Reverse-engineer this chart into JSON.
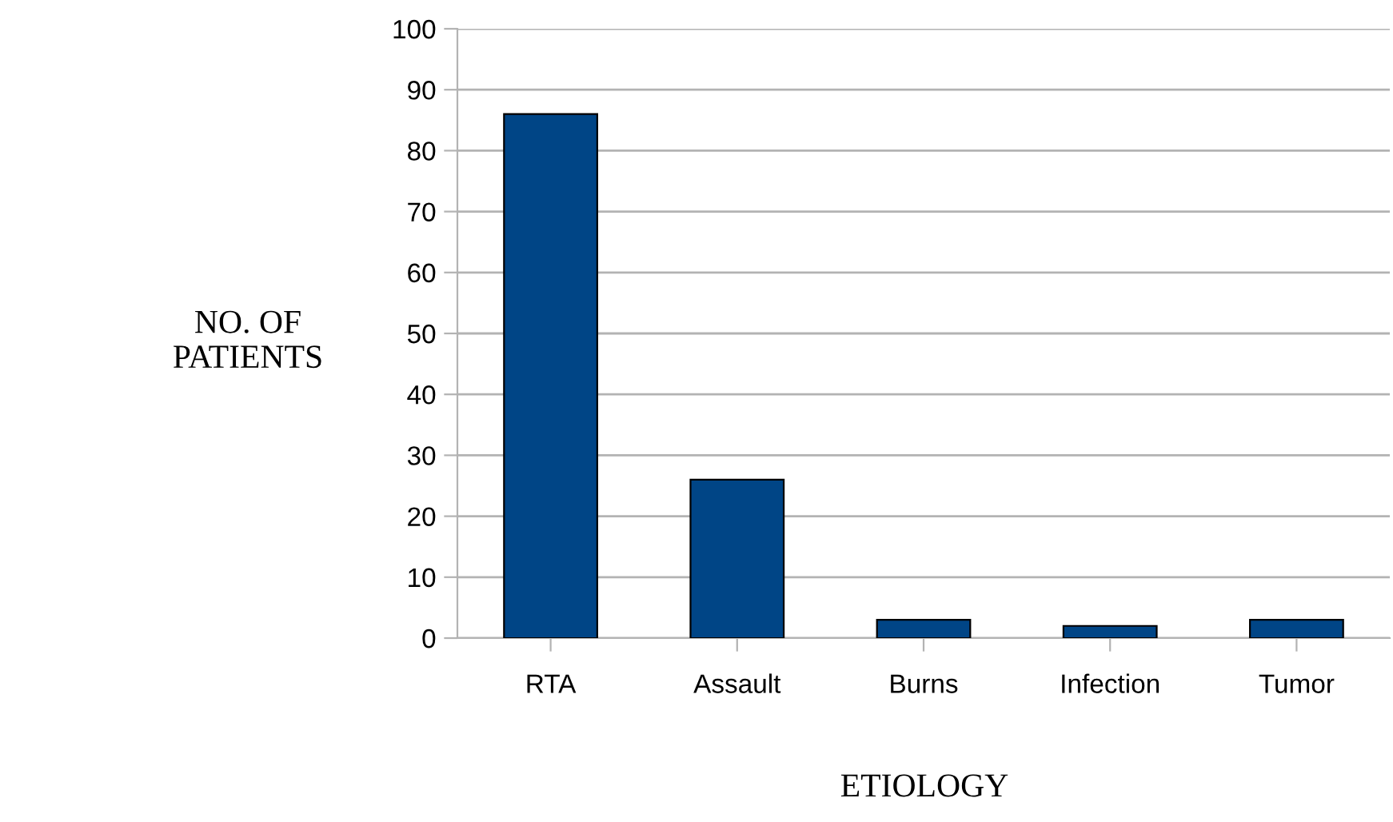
{
  "chart_data": {
    "type": "bar",
    "xlabel": "ETIOLOGY",
    "ylabel": "NO. OF\nPATIENTS",
    "categories": [
      "RTA",
      "Assault",
      "Burns",
      "Infection",
      "Tumor"
    ],
    "values": [
      86,
      26,
      3,
      2,
      3
    ],
    "color": "#004586",
    "ylim": [
      0,
      100
    ],
    "yticks": [
      0,
      10,
      20,
      30,
      40,
      50,
      60,
      70,
      80,
      90,
      100
    ],
    "grid": "y",
    "legend": false
  }
}
